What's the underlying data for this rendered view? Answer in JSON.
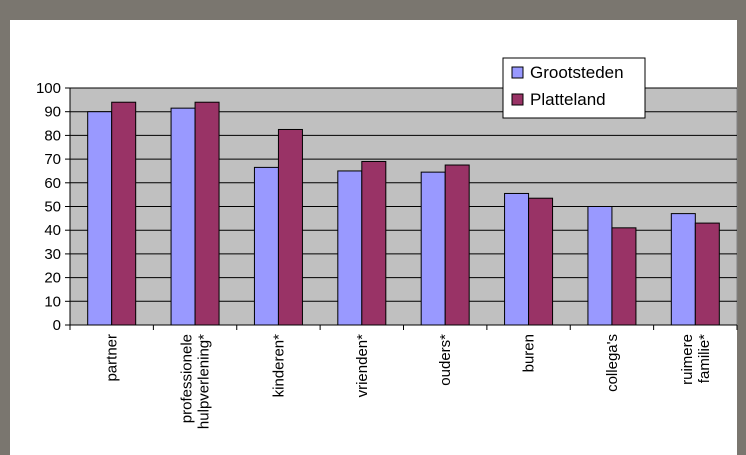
{
  "chart_data": {
    "type": "bar",
    "categories": [
      "partner",
      "professionele\nhulpverlening*",
      "kinderen*",
      "vrienden*",
      "ouders*",
      "buren",
      "collega's",
      "ruimere\nfamilie*"
    ],
    "series": [
      {
        "name": "Grootsteden",
        "values": [
          90,
          91.5,
          66.5,
          65,
          64.5,
          55.5,
          50,
          47
        ]
      },
      {
        "name": "Platteland",
        "values": [
          94,
          94,
          82.5,
          69,
          67.5,
          53.5,
          41,
          43
        ]
      }
    ],
    "ylim": [
      0,
      100
    ],
    "yticks": [
      0,
      10,
      20,
      30,
      40,
      50,
      60,
      70,
      80,
      90,
      100
    ],
    "grid": true,
    "legend": "top-right",
    "colors": {
      "series": [
        "#9999ff",
        "#993366"
      ],
      "plot_background": "#c0c0c0",
      "chart_background": "#ffffff",
      "frame": "#7a766f"
    },
    "title": "",
    "xlabel": "",
    "ylabel": ""
  }
}
